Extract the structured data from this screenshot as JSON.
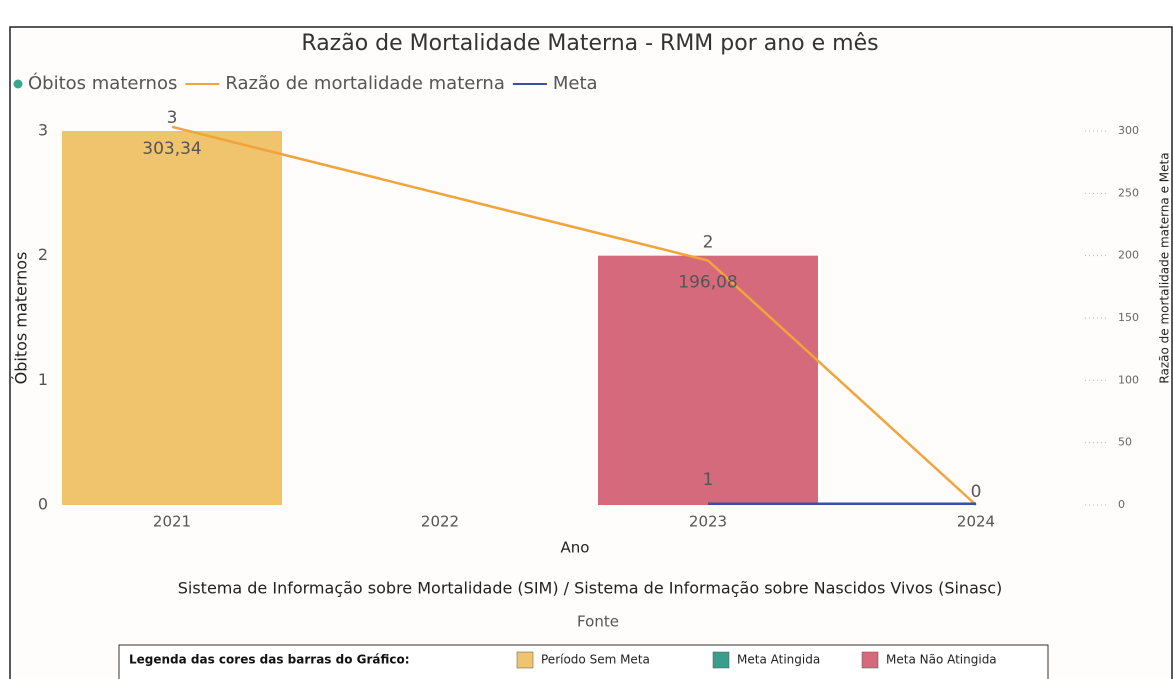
{
  "chart_data": {
    "type": "bar",
    "title": "Razão de Mortalidade Materna - RMM por ano e mês",
    "categories": [
      "2021",
      "2022",
      "2023",
      "2024"
    ],
    "xlabel": "Ano",
    "ylabel": "Óbitos maternos",
    "y2label": "Razão de mortalidade materna e Meta",
    "ylim": [
      0,
      3
    ],
    "yticks": [
      0,
      1,
      2,
      3
    ],
    "y2lim": [
      0,
      300
    ],
    "y2ticks": [
      0,
      50,
      100,
      150,
      200,
      250,
      300
    ],
    "series": [
      {
        "name": "Óbitos maternos",
        "type": "bar",
        "color": "#3aa68f",
        "values": [
          3,
          null,
          2,
          0
        ],
        "bar_colors": [
          "#efc46c",
          null,
          "#d46a7c",
          "#d46a7c"
        ],
        "value_labels": [
          "3",
          null,
          "2",
          "0"
        ]
      },
      {
        "name": "Razão de mortalidade materna",
        "type": "line",
        "axis": "y2",
        "color": "#f2a33a",
        "connect_gaps": true,
        "values": [
          303.34,
          null,
          196.08,
          0
        ],
        "value_labels": [
          "303,34",
          null,
          "196,08",
          null
        ]
      },
      {
        "name": "Meta",
        "type": "line",
        "axis": "y2",
        "color": "#3a4fa8",
        "values": [
          null,
          null,
          1,
          1
        ],
        "value_labels": [
          null,
          null,
          "1",
          null
        ]
      }
    ],
    "source": "Sistema de Informação sobre Mortalidade (SIM) / Sistema de Informação sobre Nascidos Vivos (Sinasc)",
    "source_label": "Fonte",
    "bar_legend": {
      "title": "Legenda das cores das barras do Gráfico:",
      "items": [
        {
          "label": "Período Sem Meta",
          "color": "#efc46c"
        },
        {
          "label": "Meta Atingida",
          "color": "#3a9e8d"
        },
        {
          "label": "Meta Não Atingida",
          "color": "#d46a7c"
        }
      ]
    }
  }
}
